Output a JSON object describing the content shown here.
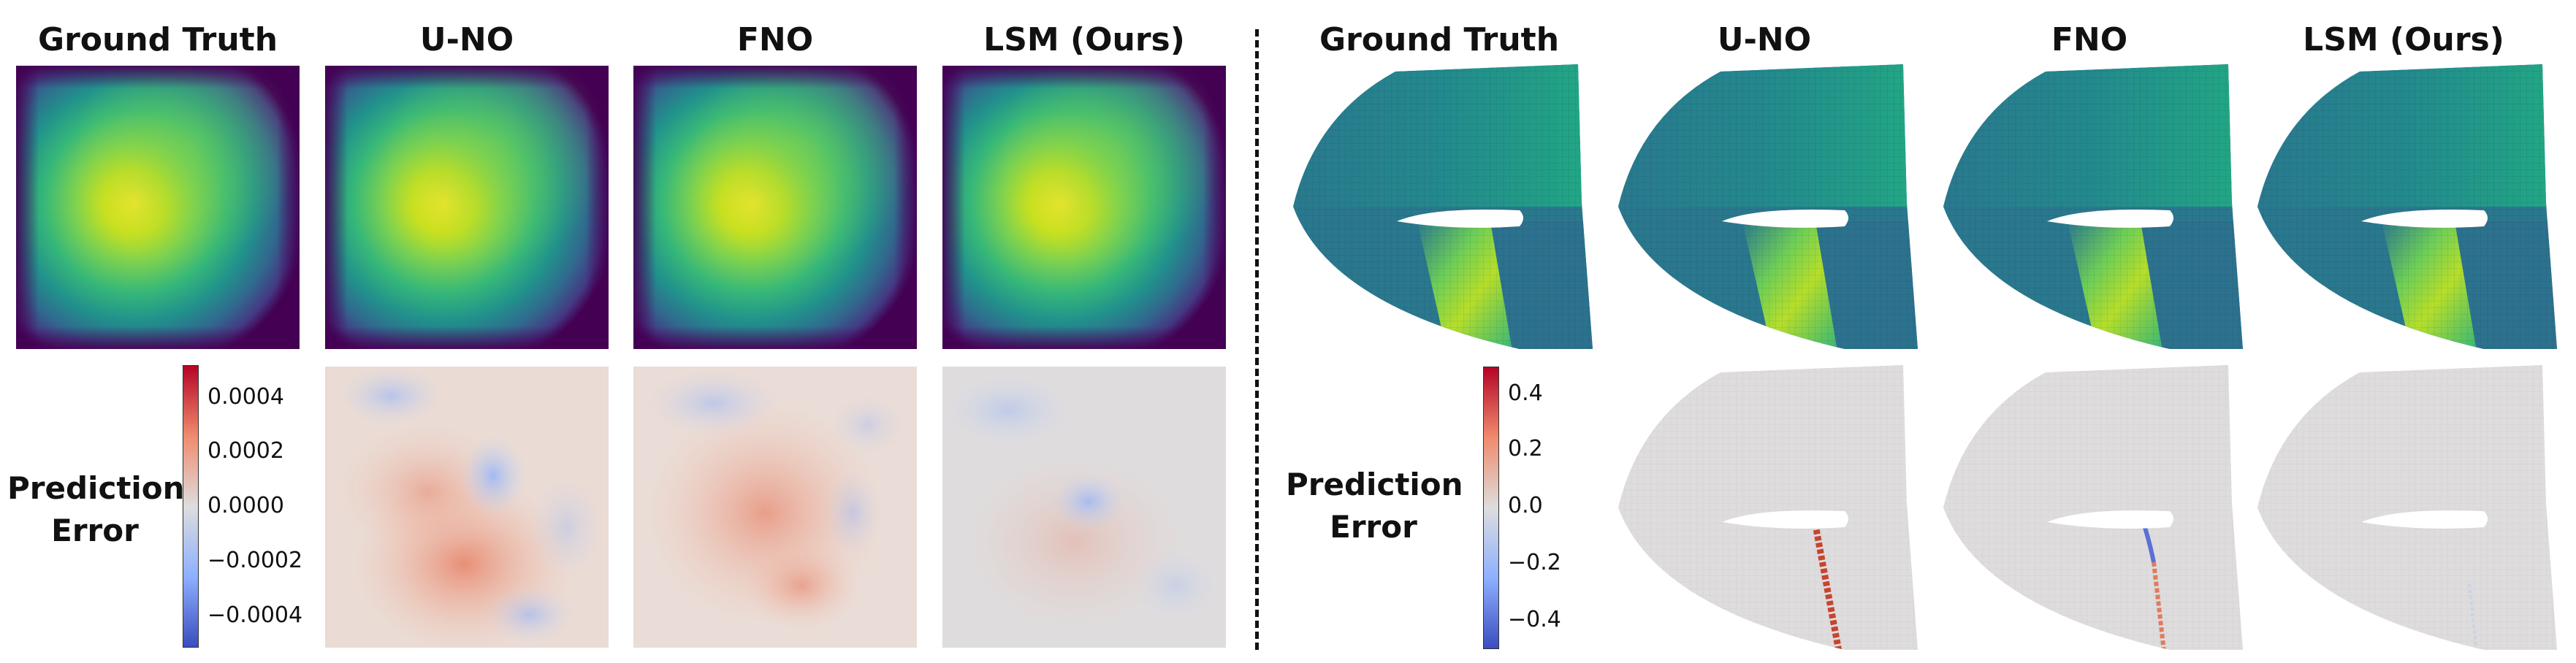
{
  "left_panel": {
    "columns": [
      "Ground Truth",
      "U-NO",
      "FNO",
      "LSM (Ours)"
    ],
    "row_label": [
      "Prediction",
      "Error"
    ],
    "colorbar_ticks": [
      "0.0004",
      "0.0002",
      "0.0000",
      "−0.0002",
      "−0.0004"
    ]
  },
  "right_panel": {
    "columns": [
      "Ground Truth",
      "U-NO",
      "FNO",
      "LSM (Ours)"
    ],
    "row_label": [
      "Prediction",
      "Error"
    ],
    "colorbar_ticks": [
      "0.4",
      "0.2",
      "0.0",
      "−0.2",
      "−0.4"
    ]
  },
  "colors": {
    "viridis_dark": "#440154",
    "viridis_mid": "#21918c",
    "viridis_bright": "#fde725",
    "coolwarm_red": "#b40426",
    "coolwarm_neutral": "#dddddd",
    "coolwarm_blue": "#3b4cc0"
  }
}
